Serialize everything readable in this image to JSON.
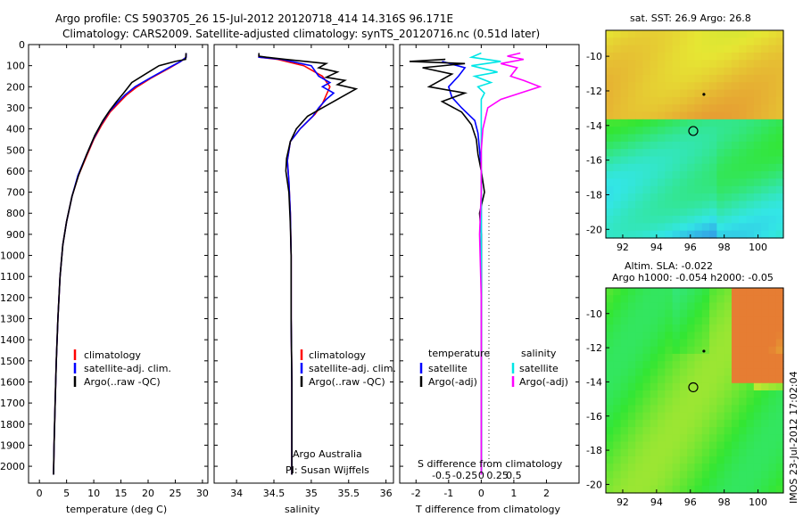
{
  "header": {
    "line1": "Argo profile: CS 5903705_26 15-Jul-2012 20120718_414 14.316S 96.171E",
    "line2": "Climatology: CARS2009. Satellite-adjusted climatology: synTS_20120716.nc (0.51d later)"
  },
  "colors": {
    "climatology": "#ff0000",
    "satellite": "#0000ff",
    "argo": "#000000",
    "sat_salinity": "#00e6e6",
    "argo_salinity": "#ff00ff"
  },
  "chart_data": [
    {
      "type": "line",
      "id": "temperature",
      "xlabel": "temperature (deg C)",
      "xlim": [
        -2,
        31
      ],
      "xticks": [
        0,
        5,
        10,
        15,
        20,
        25,
        30
      ],
      "ylim": [
        2080,
        0
      ],
      "yticks": [
        0,
        100,
        200,
        300,
        400,
        500,
        600,
        700,
        800,
        900,
        1000,
        1100,
        1200,
        1300,
        1400,
        1500,
        1600,
        1700,
        1800,
        1900,
        2000
      ],
      "legend": [
        "climatology",
        "satellite-adj. clim.",
        "Argo(..raw -QC)"
      ],
      "series": [
        {
          "name": "climatology",
          "points": [
            [
              27,
              40
            ],
            [
              27,
              60
            ],
            [
              26,
              80
            ],
            [
              24,
              110
            ],
            [
              20.5,
              160
            ],
            [
              18,
              200
            ],
            [
              16,
              240
            ],
            [
              14.5,
              280
            ],
            [
              13,
              320
            ],
            [
              11.5,
              380
            ],
            [
              10,
              450
            ],
            [
              8.5,
              540
            ],
            [
              7.2,
              620
            ],
            [
              6,
              720
            ],
            [
              5,
              840
            ],
            [
              4.3,
              950
            ],
            [
              3.8,
              1100
            ],
            [
              3.4,
              1300
            ],
            [
              3.1,
              1500
            ],
            [
              2.9,
              1700
            ],
            [
              2.7,
              1900
            ],
            [
              2.6,
              2040
            ]
          ]
        },
        {
          "name": "satellite",
          "points": [
            [
              27,
              40
            ],
            [
              27,
              60
            ],
            [
              26,
              80
            ],
            [
              23.8,
              110
            ],
            [
              20.3,
              160
            ],
            [
              17.6,
              200
            ],
            [
              15.7,
              240
            ],
            [
              14.2,
              280
            ],
            [
              12.8,
              320
            ],
            [
              11.3,
              380
            ],
            [
              9.9,
              450
            ],
            [
              8.4,
              540
            ],
            [
              7.1,
              620
            ],
            [
              6,
              720
            ],
            [
              5,
              840
            ],
            [
              4.3,
              950
            ],
            [
              3.8,
              1100
            ],
            [
              3.4,
              1300
            ],
            [
              3.1,
              1500
            ],
            [
              2.9,
              1700
            ],
            [
              2.7,
              1900
            ],
            [
              2.6,
              2040
            ]
          ]
        },
        {
          "name": "Argo",
          "points": [
            [
              27,
              40
            ],
            [
              26.9,
              70
            ],
            [
              25,
              80
            ],
            [
              22,
              100
            ],
            [
              19.5,
              140
            ],
            [
              17,
              180
            ],
            [
              15.5,
              230
            ],
            [
              14.2,
              270
            ],
            [
              13,
              310
            ],
            [
              11.7,
              360
            ],
            [
              10.2,
              430
            ],
            [
              8.7,
              520
            ],
            [
              7.2,
              620
            ],
            [
              6,
              720
            ],
            [
              5,
              840
            ],
            [
              4.3,
              950
            ],
            [
              3.8,
              1100
            ],
            [
              3.4,
              1300
            ],
            [
              3.1,
              1500
            ],
            [
              2.9,
              1700
            ],
            [
              2.7,
              1900
            ],
            [
              2.6,
              2040
            ]
          ]
        }
      ]
    },
    {
      "type": "line",
      "id": "salinity",
      "xlabel": "salinity",
      "xlim": [
        33.7,
        36.1
      ],
      "xticks": [
        34,
        34.5,
        35,
        35.5,
        36
      ],
      "ylim": [
        2080,
        0
      ],
      "legend": [
        "climatology",
        "satellite-adj. clim.",
        "Argo(..raw -QC)"
      ],
      "annotation": [
        "Argo Australia",
        "PI: Susan Wijffels"
      ],
      "series": [
        {
          "name": "climatology",
          "points": [
            [
              34.3,
              50
            ],
            [
              34.3,
              60
            ],
            [
              34.55,
              70
            ],
            [
              34.9,
              100
            ],
            [
              35.15,
              150
            ],
            [
              35.25,
              200
            ],
            [
              35.2,
              240
            ],
            [
              35.15,
              280
            ],
            [
              35.05,
              330
            ],
            [
              34.85,
              400
            ],
            [
              34.72,
              460
            ],
            [
              34.68,
              550
            ],
            [
              34.7,
              650
            ],
            [
              34.72,
              800
            ],
            [
              34.73,
              1000
            ],
            [
              34.73,
              1300
            ],
            [
              34.74,
              1600
            ],
            [
              34.74,
              1900
            ],
            [
              34.74,
              2040
            ]
          ]
        },
        {
          "name": "satellite",
          "points": [
            [
              34.3,
              50
            ],
            [
              34.3,
              60
            ],
            [
              34.6,
              70
            ],
            [
              35.0,
              100
            ],
            [
              35.1,
              150
            ],
            [
              35.25,
              180
            ],
            [
              35.15,
              200
            ],
            [
              35.3,
              230
            ],
            [
              35.2,
              260
            ],
            [
              35.1,
              300
            ],
            [
              35.02,
              340
            ],
            [
              34.85,
              400
            ],
            [
              34.72,
              460
            ],
            [
              34.68,
              550
            ],
            [
              34.7,
              650
            ],
            [
              34.72,
              800
            ],
            [
              34.73,
              1000
            ],
            [
              34.73,
              1300
            ],
            [
              34.74,
              1600
            ],
            [
              34.74,
              1900
            ],
            [
              34.74,
              2040
            ]
          ]
        },
        {
          "name": "Argo",
          "points": [
            [
              34.3,
              40
            ],
            [
              34.3,
              55
            ],
            [
              34.4,
              60
            ],
            [
              34.65,
              70
            ],
            [
              35.2,
              90
            ],
            [
              35.1,
              110
            ],
            [
              35.35,
              130
            ],
            [
              35.2,
              155
            ],
            [
              35.45,
              170
            ],
            [
              35.35,
              190
            ],
            [
              35.6,
              210
            ],
            [
              35.4,
              250
            ],
            [
              35.25,
              280
            ],
            [
              35.1,
              310
            ],
            [
              34.95,
              340
            ],
            [
              34.8,
              400
            ],
            [
              34.72,
              460
            ],
            [
              34.67,
              540
            ],
            [
              34.66,
              600
            ],
            [
              34.7,
              700
            ],
            [
              34.72,
              850
            ],
            [
              34.73,
              1000
            ],
            [
              34.73,
              1300
            ],
            [
              34.74,
              1600
            ],
            [
              34.74,
              1900
            ],
            [
              34.74,
              2040
            ]
          ]
        }
      ]
    },
    {
      "type": "line",
      "id": "differences",
      "xlabel": "T difference from climatology",
      "xlabel_top": "S difference from climatology",
      "xlim": [
        -2.5,
        3
      ],
      "xticks": [
        -2,
        -1,
        0,
        1,
        2
      ],
      "xticks_top": [
        "-0.5",
        "-0.25",
        "0",
        "0.25",
        "0.5"
      ],
      "ylim": [
        2080,
        0
      ],
      "legend_titles": [
        "temperature",
        "salinity"
      ],
      "legend": [
        "satellite",
        "Argo(-adj)",
        "satellite",
        "Argo(-adj)"
      ],
      "series": [
        {
          "name": "T satellite",
          "points": [
            [
              -1.2,
              80
            ],
            [
              -0.5,
              110
            ],
            [
              -0.7,
              150
            ],
            [
              -1,
              200
            ],
            [
              -0.9,
              250
            ],
            [
              -0.6,
              300
            ],
            [
              -0.2,
              360
            ],
            [
              -0.1,
              420
            ],
            [
              -0.05,
              500
            ],
            [
              0,
              600
            ],
            [
              0,
              800
            ],
            [
              0,
              1100
            ],
            [
              0,
              1500
            ],
            [
              0,
              2040
            ]
          ]
        },
        {
          "name": "T Argo",
          "points": [
            [
              -1.1,
              70
            ],
            [
              -2.2,
              80
            ],
            [
              -0.5,
              90
            ],
            [
              -1.8,
              110
            ],
            [
              -0.9,
              140
            ],
            [
              -1.6,
              200
            ],
            [
              -0.5,
              230
            ],
            [
              -1.2,
              270
            ],
            [
              -0.6,
              320
            ],
            [
              -0.3,
              380
            ],
            [
              -0.15,
              450
            ],
            [
              -0.1,
              520
            ],
            [
              0,
              600
            ],
            [
              0.1,
              700
            ],
            [
              -0.05,
              800
            ],
            [
              0,
              900
            ],
            [
              0,
              1200
            ],
            [
              0,
              1600
            ],
            [
              0,
              2040
            ]
          ]
        },
        {
          "name": "S satellite",
          "points": [
            [
              0,
              40
            ],
            [
              -0.3,
              60
            ],
            [
              0.6,
              80
            ],
            [
              -0.3,
              100
            ],
            [
              0.5,
              130
            ],
            [
              -0.2,
              150
            ],
            [
              0.3,
              180
            ],
            [
              -0.1,
              200
            ],
            [
              0.1,
              230
            ],
            [
              0,
              260
            ],
            [
              0,
              400
            ],
            [
              0,
              800
            ],
            [
              0,
              1200
            ],
            [
              0,
              2040
            ]
          ]
        },
        {
          "name": "S Argo",
          "points": [
            [
              1.2,
              40
            ],
            [
              0.8,
              55
            ],
            [
              1.3,
              70
            ],
            [
              0.6,
              90
            ],
            [
              1.1,
              110
            ],
            [
              0.9,
              150
            ],
            [
              1.3,
              170
            ],
            [
              1.8,
              200
            ],
            [
              1.2,
              230
            ],
            [
              0.6,
              260
            ],
            [
              0.2,
              300
            ],
            [
              0.05,
              400
            ],
            [
              0,
              500
            ],
            [
              0,
              700
            ],
            [
              -0.05,
              900
            ],
            [
              0,
              1200
            ],
            [
              0,
              1600
            ],
            [
              0,
              2040
            ]
          ]
        }
      ]
    },
    {
      "type": "heatmap",
      "id": "sst_map",
      "title": "sat. SST: 26.9 Argo: 26.8",
      "xlim": [
        91,
        101.5
      ],
      "ylim": [
        -20.5,
        -8.5
      ],
      "xticks": [
        92,
        94,
        96,
        98,
        100
      ],
      "yticks": [
        -10,
        -12,
        -14,
        -16,
        -18,
        -20
      ],
      "argo_position": [
        96.171,
        -14.316
      ],
      "track_point": [
        96.8,
        -12.2
      ]
    },
    {
      "type": "heatmap",
      "id": "sla_map",
      "title": "Altim. SLA: -0.022",
      "title_line2": "Argo h1000: -0.054 h2000: -0.05",
      "xlim": [
        91,
        101.5
      ],
      "ylim": [
        -20.5,
        -8.5
      ],
      "xticks": [
        92,
        94,
        96,
        98,
        100
      ],
      "yticks": [
        -10,
        -12,
        -14,
        -16,
        -18,
        -20
      ],
      "argo_position": [
        96.171,
        -14.316
      ],
      "track_point": [
        96.8,
        -12.2
      ]
    }
  ],
  "footer": {
    "imos_stamp": "IMOS 23-Jul-2012 17:02:04"
  }
}
